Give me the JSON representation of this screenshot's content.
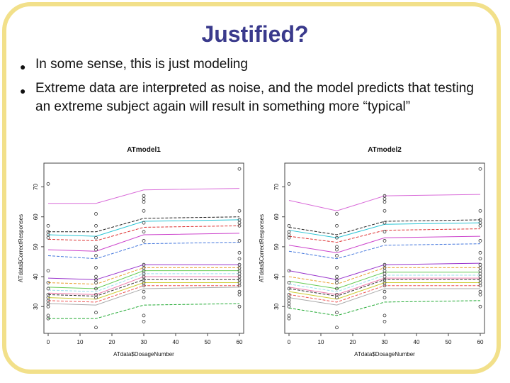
{
  "slide": {
    "title": "Justified?",
    "bullets": [
      "In some sense, this is just modeling",
      "Extreme data are interpreted as noise, and the model predicts that testing an extreme subject again will result in something more “typical”"
    ]
  },
  "chart_data": [
    {
      "type": "line",
      "title": "ATmodel1",
      "xlabel": "ATdata$DosageNumber",
      "ylabel": "ATdata$CorrectResponses",
      "xlim": [
        0,
        60
      ],
      "ylim": [
        22,
        77
      ],
      "xticks": [
        0,
        10,
        20,
        30,
        40,
        50,
        60
      ],
      "yticks": [
        30,
        40,
        50,
        60,
        70
      ],
      "x": [
        0,
        15,
        30,
        60
      ],
      "series": [
        {
          "color": "#d96cd9",
          "values": [
            64.5,
            64.5,
            69.0,
            69.5
          ]
        },
        {
          "color": "#222222",
          "values": [
            55.0,
            55.0,
            59.5,
            60.0
          ]
        },
        {
          "color": "#29c4d4",
          "values": [
            54.0,
            53.5,
            58.5,
            59.0
          ]
        },
        {
          "color": "#dd3333",
          "values": [
            52.5,
            52.0,
            56.5,
            57.0
          ]
        },
        {
          "color": "#cc44cc",
          "values": [
            49.0,
            48.5,
            54.0,
            54.5
          ]
        },
        {
          "color": "#4477dd",
          "values": [
            47.0,
            46.0,
            51.0,
            51.5
          ]
        },
        {
          "color": "#9933cc",
          "values": [
            39.5,
            39.0,
            44.0,
            44.0
          ]
        },
        {
          "color": "#e8a030",
          "values": [
            38.0,
            37.5,
            43.0,
            43.0
          ]
        },
        {
          "color": "#66cc55",
          "values": [
            36.5,
            36.0,
            42.0,
            42.0
          ]
        },
        {
          "color": "#99ddee",
          "values": [
            35.5,
            35.0,
            41.0,
            41.0
          ]
        },
        {
          "color": "#ee77aa",
          "values": [
            34.5,
            34.0,
            40.0,
            40.0
          ]
        },
        {
          "color": "#333333",
          "values": [
            34.0,
            33.5,
            39.0,
            39.0
          ]
        },
        {
          "color": "#cccc33",
          "values": [
            33.0,
            32.5,
            38.0,
            38.0
          ]
        },
        {
          "color": "#ee5555",
          "values": [
            32.0,
            31.5,
            37.0,
            37.0
          ]
        },
        {
          "color": "#aaaaaa",
          "values": [
            31.0,
            30.5,
            36.0,
            36.5
          ]
        },
        {
          "color": "#22aa33",
          "values": [
            26.0,
            26.0,
            30.5,
            31.0
          ]
        }
      ],
      "observed": [
        {
          "x": 0,
          "y": [
            71,
            57,
            55,
            54,
            53,
            42,
            38,
            36,
            34,
            33,
            32,
            31,
            30,
            27,
            26
          ]
        },
        {
          "x": 15,
          "y": [
            61,
            57,
            53,
            50,
            49,
            47,
            43,
            40,
            39,
            38,
            36,
            34,
            33,
            28,
            23
          ]
        },
        {
          "x": 30,
          "y": [
            67,
            66,
            65,
            62,
            58,
            55,
            52,
            44,
            43,
            42,
            41,
            40,
            39,
            38,
            37,
            35,
            33,
            27,
            25
          ]
        },
        {
          "x": 60,
          "y": [
            76,
            62,
            59,
            58,
            57,
            52,
            48,
            46,
            44,
            43,
            42,
            41,
            40,
            39,
            38,
            37,
            35,
            34,
            30
          ]
        }
      ]
    },
    {
      "type": "line",
      "title": "ATmodel2",
      "xlabel": "ATdata$DosageNumber",
      "ylabel": "ATdata$CorrectResponses",
      "xlim": [
        0,
        60
      ],
      "ylim": [
        22,
        77
      ],
      "xticks": [
        0,
        10,
        20,
        30,
        40,
        50,
        60
      ],
      "yticks": [
        30,
        40,
        50,
        60,
        70
      ],
      "x": [
        0,
        15,
        30,
        60
      ],
      "series": [
        {
          "color": "#d96cd9",
          "values": [
            65.5,
            62.0,
            67.0,
            67.5
          ]
        },
        {
          "color": "#222222",
          "values": [
            56.5,
            54.0,
            58.5,
            59.0
          ]
        },
        {
          "color": "#29c4d4",
          "values": [
            55.5,
            53.0,
            57.5,
            58.0
          ]
        },
        {
          "color": "#dd3333",
          "values": [
            53.5,
            51.5,
            55.5,
            56.0
          ]
        },
        {
          "color": "#cc44cc",
          "values": [
            50.5,
            48.0,
            53.0,
            53.5
          ]
        },
        {
          "color": "#4477dd",
          "values": [
            48.5,
            46.0,
            50.5,
            51.0
          ]
        },
        {
          "color": "#9933cc",
          "values": [
            42.0,
            39.0,
            44.0,
            44.5
          ]
        },
        {
          "color": "#e8a030",
          "values": [
            40.0,
            37.5,
            43.0,
            43.0
          ]
        },
        {
          "color": "#66cc55",
          "values": [
            38.5,
            36.0,
            41.5,
            41.5
          ]
        },
        {
          "color": "#99ddee",
          "values": [
            37.5,
            35.0,
            40.5,
            40.5
          ]
        },
        {
          "color": "#ee77aa",
          "values": [
            36.5,
            34.0,
            39.5,
            39.5
          ]
        },
        {
          "color": "#333333",
          "values": [
            36.0,
            33.5,
            39.0,
            39.0
          ]
        },
        {
          "color": "#cccc33",
          "values": [
            35.0,
            32.5,
            38.0,
            38.0
          ]
        },
        {
          "color": "#ee5555",
          "values": [
            34.0,
            31.5,
            37.0,
            37.0
          ]
        },
        {
          "color": "#aaaaaa",
          "values": [
            33.0,
            30.5,
            36.0,
            36.0
          ]
        },
        {
          "color": "#22aa33",
          "values": [
            29.5,
            27.0,
            31.5,
            32.0
          ]
        }
      ],
      "observed": [
        {
          "x": 0,
          "y": [
            71,
            57,
            55,
            54,
            53,
            42,
            38,
            36,
            34,
            33,
            32,
            31,
            30,
            27,
            26
          ]
        },
        {
          "x": 15,
          "y": [
            61,
            57,
            53,
            50,
            49,
            47,
            43,
            40,
            39,
            38,
            36,
            34,
            33,
            28,
            23
          ]
        },
        {
          "x": 30,
          "y": [
            67,
            66,
            65,
            62,
            58,
            55,
            52,
            44,
            43,
            42,
            41,
            40,
            39,
            38,
            37,
            35,
            33,
            27,
            25
          ]
        },
        {
          "x": 60,
          "y": [
            76,
            62,
            59,
            58,
            57,
            52,
            48,
            46,
            44,
            43,
            42,
            41,
            40,
            39,
            38,
            37,
            35,
            34,
            30
          ]
        }
      ]
    }
  ]
}
